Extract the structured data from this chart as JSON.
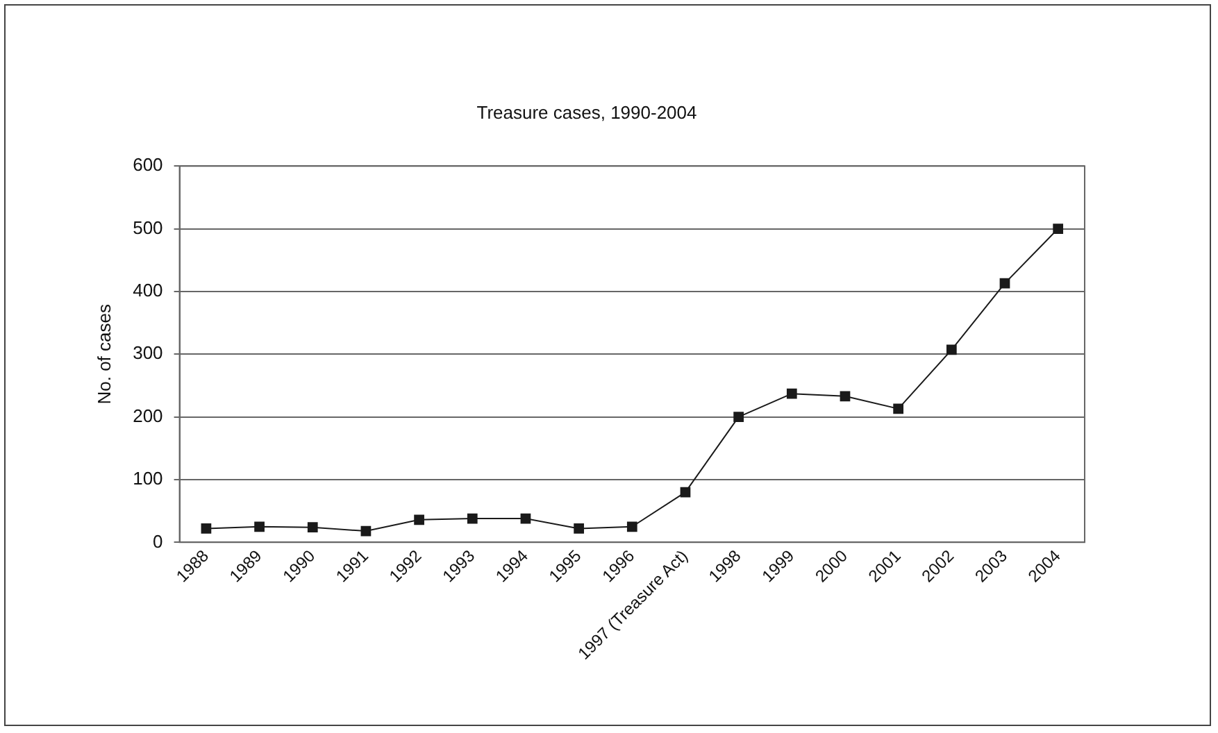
{
  "chart_data": {
    "type": "line",
    "title": "Treasure cases, 1990-2004",
    "ylabel": "No. of cases",
    "categories": [
      "1988",
      "1989",
      "1990",
      "1991",
      "1992",
      "1993",
      "1994",
      "1995",
      "1996",
      "1997 (Treasure Act)",
      "1998",
      "1999",
      "2000",
      "2001",
      "2002",
      "2003",
      "2004"
    ],
    "values": [
      22,
      25,
      24,
      18,
      36,
      38,
      38,
      22,
      25,
      80,
      200,
      237,
      233,
      213,
      307,
      413,
      500
    ],
    "color": "#1a1a1a",
    "marker": "square",
    "line_style": "solid",
    "ylim": [
      0,
      600
    ],
    "yticks": [
      0,
      100,
      200,
      300,
      400,
      500,
      600
    ],
    "grid": "y",
    "legend": false
  }
}
